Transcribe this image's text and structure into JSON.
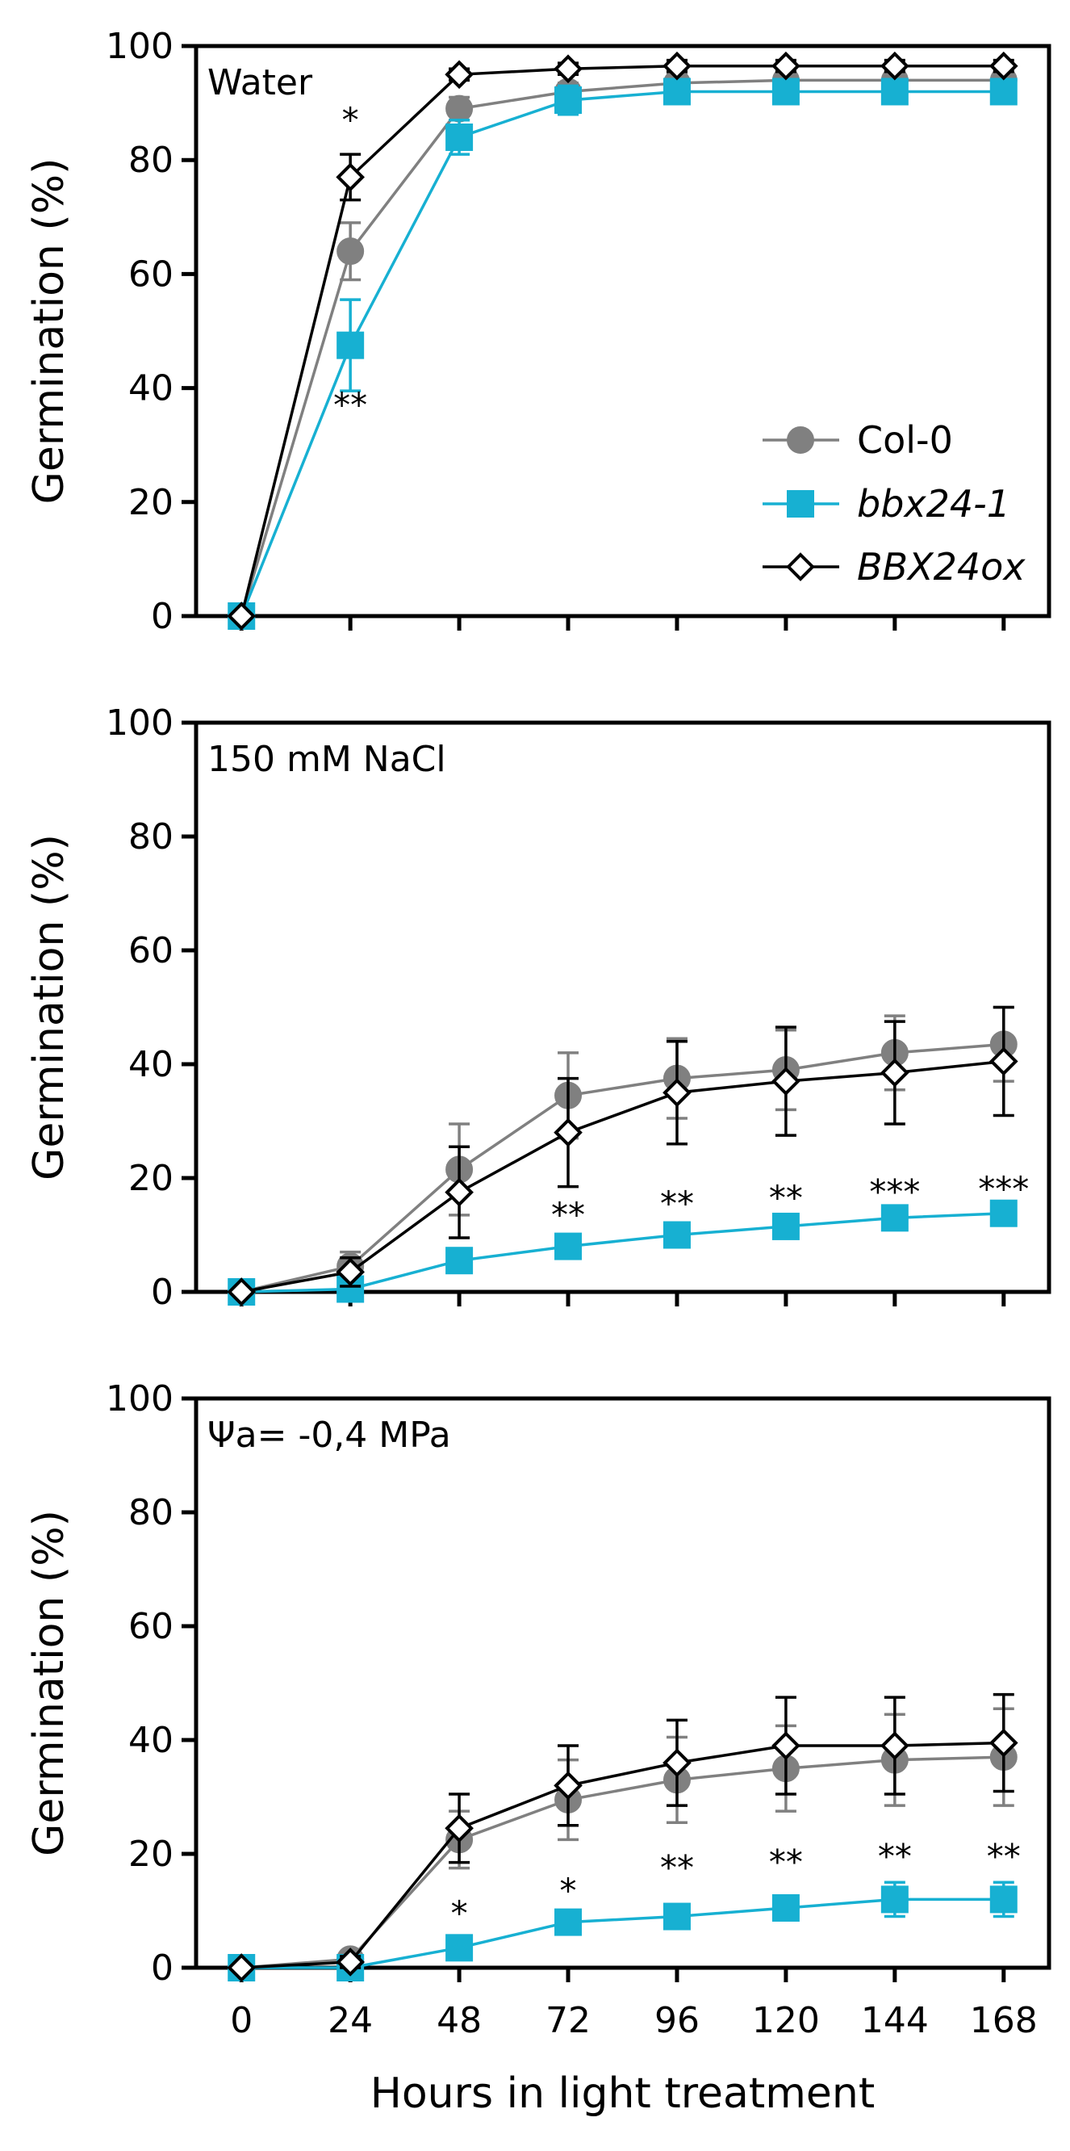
{
  "chart_data": [
    {
      "type": "line",
      "panel_label": "Water",
      "ylabel": "Germination (%)",
      "xlabel": "",
      "x": [
        0,
        24,
        48,
        72,
        96,
        120,
        144,
        168
      ],
      "xlim": [
        -10,
        178
      ],
      "ylim": [
        0,
        100
      ],
      "yticks": [
        0,
        20,
        40,
        60,
        80,
        100
      ],
      "series": [
        {
          "name": "Col-0",
          "marker": "circle",
          "values": [
            0,
            64,
            89,
            92,
            93.5,
            94,
            94,
            94
          ],
          "errors": [
            0,
            5,
            2,
            1.5,
            1.5,
            1,
            1,
            1
          ]
        },
        {
          "name": "bbx24-1",
          "marker": "square",
          "values": [
            0,
            47.5,
            84,
            90.5,
            92,
            92,
            92,
            92
          ],
          "errors": [
            0,
            8,
            3,
            2.5,
            2,
            2,
            2,
            2
          ]
        },
        {
          "name": "BBX24ox",
          "marker": "diamond",
          "values": [
            0,
            77,
            95,
            96,
            96.5,
            96.5,
            96.5,
            96.5
          ],
          "errors": [
            0,
            4,
            1,
            1,
            1,
            1,
            1,
            1
          ]
        }
      ],
      "annotations": [
        {
          "x": 24,
          "y": 85,
          "text": "*"
        },
        {
          "x": 24,
          "y": 35,
          "text": "**"
        }
      ],
      "legend": {
        "position": "bottom-right",
        "entries": [
          "Col-0",
          "bbx24-1",
          "BBX24ox"
        ]
      }
    },
    {
      "type": "line",
      "panel_label": "150 mM NaCl",
      "ylabel": "Germination (%)",
      "xlabel": "",
      "x": [
        0,
        24,
        48,
        72,
        96,
        120,
        144,
        168
      ],
      "xlim": [
        -10,
        178
      ],
      "ylim": [
        0,
        100
      ],
      "yticks": [
        0,
        20,
        40,
        60,
        80,
        100
      ],
      "series": [
        {
          "name": "Col-0",
          "marker": "circle",
          "values": [
            0,
            4.5,
            21.5,
            34.5,
            37.5,
            39,
            42,
            43.5
          ],
          "errors": [
            0,
            2.5,
            8,
            7.5,
            7,
            7,
            6.5,
            6.5
          ]
        },
        {
          "name": "bbx24-1",
          "marker": "square",
          "values": [
            0,
            0.5,
            5.5,
            8,
            10,
            11.5,
            13,
            13.8
          ],
          "errors": [
            0,
            0.5,
            1,
            1,
            1,
            1,
            1,
            1
          ]
        },
        {
          "name": "BBX24ox",
          "marker": "diamond",
          "values": [
            0,
            3.5,
            17.5,
            28,
            35,
            37,
            38.5,
            40.5
          ],
          "errors": [
            0,
            2.5,
            8,
            9.5,
            9,
            9.5,
            9,
            9.5
          ]
        }
      ],
      "annotations": [
        {
          "x": 72,
          "y": 11.5,
          "text": "**"
        },
        {
          "x": 96,
          "y": 13.5,
          "text": "**"
        },
        {
          "x": 120,
          "y": 14.5,
          "text": "**"
        },
        {
          "x": 144,
          "y": 15.5,
          "text": "***"
        },
        {
          "x": 168,
          "y": 16,
          "text": "***"
        }
      ]
    },
    {
      "type": "line",
      "panel_label": "Ψa= -0,4 MPa",
      "ylabel": "Germination (%)",
      "xlabel": "Hours in light treatment",
      "x": [
        0,
        24,
        48,
        72,
        96,
        120,
        144,
        168
      ],
      "xlim": [
        -10,
        178
      ],
      "ylim": [
        0,
        100
      ],
      "yticks": [
        0,
        20,
        40,
        60,
        80,
        100
      ],
      "xticks": [
        "0",
        "24",
        "48",
        "72",
        "96",
        "120",
        "144",
        "168"
      ],
      "series": [
        {
          "name": "Col-0",
          "marker": "circle",
          "values": [
            0,
            1.5,
            22.5,
            29.5,
            33,
            35,
            36.5,
            37
          ],
          "errors": [
            0,
            1,
            5,
            7,
            7.5,
            7.5,
            8,
            8.5
          ]
        },
        {
          "name": "bbx24-1",
          "marker": "square",
          "values": [
            0,
            0,
            3.5,
            8,
            9,
            10.5,
            12,
            12
          ],
          "errors": [
            0,
            0,
            1,
            1,
            1,
            2,
            3,
            3
          ]
        },
        {
          "name": "BBX24ox",
          "marker": "diamond",
          "values": [
            0,
            1,
            24.5,
            32,
            36,
            39,
            39,
            39.5
          ],
          "errors": [
            0,
            1,
            6,
            7,
            7.5,
            8.5,
            8.5,
            8.5
          ]
        }
      ],
      "annotations": [
        {
          "x": 48,
          "y": 7.5,
          "text": "*"
        },
        {
          "x": 72,
          "y": 11.5,
          "text": "*"
        },
        {
          "x": 96,
          "y": 15.5,
          "text": "**"
        },
        {
          "x": 120,
          "y": 16.5,
          "text": "**"
        },
        {
          "x": 144,
          "y": 17.5,
          "text": "**"
        },
        {
          "x": 168,
          "y": 17.5,
          "text": "**"
        }
      ]
    }
  ],
  "colors": {
    "col0": "#808080",
    "bbx24": "#17b0d2",
    "bbx24ox": "#000000",
    "axis": "#000000"
  }
}
